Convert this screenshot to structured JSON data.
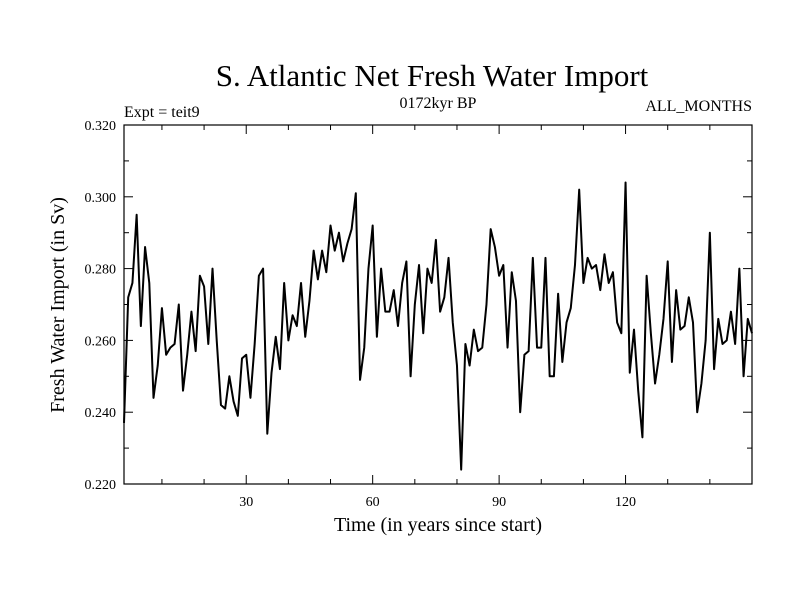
{
  "chart_data": {
    "type": "line",
    "title": "S. Atlantic Net Fresh Water Import",
    "subtitle_left": "Expt = teit9",
    "subtitle_center": "0172kyr BP",
    "subtitle_right": "ALL_MONTHS",
    "xlabel": "Time (in years since start)",
    "ylabel": "Fresh Water Import (in Sv)",
    "xlim": [
      1,
      150
    ],
    "ylim": [
      0.22,
      0.32
    ],
    "x_ticks": [
      30,
      60,
      90,
      120
    ],
    "x_tick_labels": [
      "30",
      "60",
      "90",
      "120"
    ],
    "y_ticks": [
      0.22,
      0.24,
      0.26,
      0.28,
      0.3,
      0.32
    ],
    "y_tick_labels": [
      "0.220",
      "0.240",
      "0.260",
      "0.280",
      "0.300",
      "0.320"
    ],
    "line_color": "#000000",
    "series": [
      {
        "name": "Fresh Water Import",
        "x": [
          1,
          2,
          3,
          4,
          5,
          6,
          7,
          8,
          9,
          10,
          11,
          12,
          13,
          14,
          15,
          16,
          17,
          18,
          19,
          20,
          21,
          22,
          23,
          24,
          25,
          26,
          27,
          28,
          29,
          30,
          31,
          32,
          33,
          34,
          35,
          36,
          37,
          38,
          39,
          40,
          41,
          42,
          43,
          44,
          45,
          46,
          47,
          48,
          49,
          50,
          51,
          52,
          53,
          54,
          55,
          56,
          57,
          58,
          59,
          60,
          61,
          62,
          63,
          64,
          65,
          66,
          67,
          68,
          69,
          70,
          71,
          72,
          73,
          74,
          75,
          76,
          77,
          78,
          79,
          80,
          81,
          82,
          83,
          84,
          85,
          86,
          87,
          88,
          89,
          90,
          91,
          92,
          93,
          94,
          95,
          96,
          97,
          98,
          99,
          100,
          101,
          102,
          103,
          104,
          105,
          106,
          107,
          108,
          109,
          110,
          111,
          112,
          113,
          114,
          115,
          116,
          117,
          118,
          119,
          120,
          121,
          122,
          123,
          124,
          125,
          126,
          127,
          128,
          129,
          130,
          131,
          132,
          133,
          134,
          135,
          136,
          137,
          138,
          139,
          140,
          141,
          142,
          143,
          144,
          145,
          146,
          147,
          148,
          149,
          150
        ],
        "values": [
          0.237,
          0.272,
          0.276,
          0.295,
          0.264,
          0.286,
          0.276,
          0.244,
          0.253,
          0.269,
          0.256,
          0.258,
          0.259,
          0.27,
          0.246,
          0.256,
          0.268,
          0.257,
          0.278,
          0.275,
          0.259,
          0.28,
          0.26,
          0.242,
          0.241,
          0.25,
          0.243,
          0.239,
          0.255,
          0.256,
          0.244,
          0.259,
          0.278,
          0.28,
          0.234,
          0.251,
          0.261,
          0.252,
          0.276,
          0.26,
          0.267,
          0.264,
          0.276,
          0.261,
          0.271,
          0.285,
          0.277,
          0.285,
          0.279,
          0.292,
          0.285,
          0.29,
          0.282,
          0.287,
          0.291,
          0.301,
          0.249,
          0.258,
          0.28,
          0.292,
          0.261,
          0.28,
          0.268,
          0.268,
          0.274,
          0.264,
          0.276,
          0.282,
          0.25,
          0.27,
          0.281,
          0.262,
          0.28,
          0.276,
          0.288,
          0.268,
          0.272,
          0.283,
          0.265,
          0.253,
          0.224,
          0.259,
          0.253,
          0.263,
          0.257,
          0.258,
          0.27,
          0.291,
          0.286,
          0.278,
          0.281,
          0.258,
          0.279,
          0.271,
          0.24,
          0.256,
          0.257,
          0.283,
          0.258,
          0.258,
          0.283,
          0.25,
          0.25,
          0.273,
          0.254,
          0.265,
          0.269,
          0.281,
          0.302,
          0.276,
          0.283,
          0.28,
          0.281,
          0.274,
          0.284,
          0.276,
          0.279,
          0.265,
          0.262,
          0.304,
          0.251,
          0.263,
          0.246,
          0.233,
          0.278,
          0.262,
          0.248,
          0.256,
          0.266,
          0.282,
          0.254,
          0.274,
          0.263,
          0.264,
          0.272,
          0.265,
          0.24,
          0.248,
          0.26,
          0.29,
          0.252,
          0.266,
          0.259,
          0.26,
          0.268,
          0.259,
          0.28,
          0.25,
          0.266,
          0.262
        ]
      }
    ]
  }
}
